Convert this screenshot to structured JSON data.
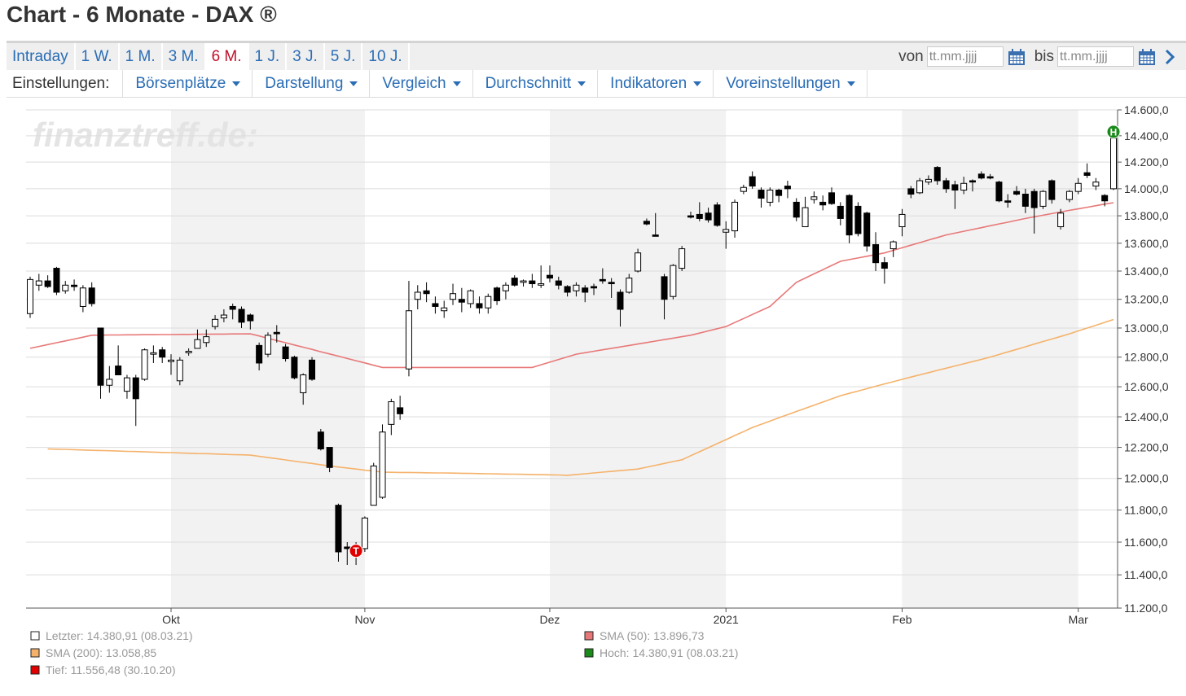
{
  "header": {
    "title": "Chart - 6 Monate - DAX ®"
  },
  "toolbar": {
    "tabs": [
      {
        "label": "Intraday"
      },
      {
        "label": "1 W."
      },
      {
        "label": "1 M."
      },
      {
        "label": "3 M."
      },
      {
        "label": "6 M.",
        "active": true
      },
      {
        "label": "1 J."
      },
      {
        "label": "3 J."
      },
      {
        "label": "5 J."
      },
      {
        "label": "10 J."
      }
    ],
    "from_label": "von",
    "to_label": "bis",
    "date_placeholder": "tt.mm.jjjj"
  },
  "settings": {
    "label": "Einstellungen:",
    "menus": [
      "Börsenplätze",
      "Darstellung",
      "Vergleich",
      "Durchschnitt",
      "Indikatoren",
      "Voreinstellungen"
    ]
  },
  "chart_data": {
    "type": "candlestick",
    "watermark": "finanztreff.de:",
    "categories": [
      null,
      null,
      null,
      null,
      null,
      null,
      null,
      null,
      null,
      null,
      null,
      null,
      null,
      null,
      null,
      null,
      null,
      null,
      null,
      null,
      null,
      null,
      null,
      null,
      null,
      null,
      null,
      null,
      null,
      null,
      null,
      null,
      null,
      null,
      null,
      null,
      null,
      null,
      null,
      null,
      null,
      null,
      null,
      null,
      null,
      null,
      null,
      null,
      null,
      null,
      null,
      null,
      null,
      null,
      null,
      null,
      null,
      null,
      null,
      null,
      null,
      null,
      null,
      null,
      null,
      null,
      null,
      null,
      null,
      null,
      null,
      null,
      null,
      null,
      null,
      null,
      null,
      null,
      null,
      null,
      null,
      null,
      null,
      null,
      null,
      null,
      null,
      null,
      null,
      null,
      null,
      null,
      null,
      null,
      null,
      null,
      null,
      null,
      null,
      null,
      null,
      null,
      null,
      null,
      null,
      null,
      null,
      null,
      null,
      null,
      null,
      null,
      null,
      null,
      null,
      null,
      null,
      null,
      null,
      null,
      null,
      null,
      null,
      null
    ],
    "open": [
      13100,
      13300,
      13330,
      13420,
      13260,
      13300,
      13150,
      13280,
      13000,
      12610,
      12740,
      12570,
      12660,
      12650,
      12820,
      12850,
      12770,
      12640,
      12830,
      12860,
      12900,
      13010,
      13070,
      13150,
      13130,
      13090,
      12880,
      12820,
      12970,
      12870,
      12800,
      12560,
      12780,
      12300,
      12200,
      11830,
      11570,
      11580,
      11560,
      11830,
      11880,
      12350,
      12460,
      12720,
      13200,
      13260,
      13170,
      13120,
      13200,
      13200,
      13170,
      13170,
      13140,
      13280,
      13260,
      13350,
      13320,
      13330,
      13300,
      13370,
      13330,
      13290,
      13260,
      13280,
      13290,
      13340,
      13320,
      13250,
      13250,
      13400,
      13760,
      13660,
      13360,
      13220,
      13420,
      13800,
      13810,
      13820,
      13880,
      13680,
      13690,
      13980,
      14090,
      13990,
      13900,
      13990,
      14020,
      13900,
      13720,
      13920,
      13900,
      13970,
      13870,
      13950,
      13870,
      13820,
      13590,
      13460,
      13560,
      13720,
      14000,
      13970,
      14050,
      14160,
      14060,
      14030,
      13990,
      14060,
      14110,
      14090,
      14050,
      13910,
      13980,
      13960,
      13980,
      13870,
      14060,
      13720,
      13920,
      13980,
      14120,
      14020,
      13950,
      14000
    ],
    "high": [
      13360,
      13380,
      13370,
      13430,
      13330,
      13340,
      13300,
      13320,
      13000,
      12740,
      12880,
      12680,
      12680,
      12860,
      12880,
      12870,
      12820,
      12800,
      12860,
      12990,
      12990,
      13090,
      13130,
      13170,
      13150,
      13100,
      12900,
      12970,
      13020,
      12890,
      12810,
      12690,
      12800,
      12320,
      12200,
      11840,
      11600,
      11600,
      11760,
      12100,
      12350,
      12520,
      12540,
      13330,
      13300,
      13320,
      13220,
      13190,
      13310,
      13280,
      13270,
      13220,
      13240,
      13290,
      13320,
      13370,
      13340,
      13380,
      13440,
      13440,
      13360,
      13300,
      13320,
      13300,
      13310,
      13420,
      13350,
      13270,
      13380,
      13560,
      13780,
      13820,
      13380,
      13450,
      13580,
      13830,
      13900,
      13860,
      13900,
      13760,
      13920,
      14030,
      14130,
      14010,
      14010,
      14000,
      14060,
      13930,
      13940,
      13980,
      13950,
      14010,
      13900,
      13960,
      13900,
      13830,
      13680,
      13500,
      13620,
      13850,
      14020,
      14080,
      14100,
      14170,
      14080,
      14060,
      14090,
      14070,
      14130,
      14110,
      14060,
      13960,
      14020,
      14000,
      14000,
      13990,
      14070,
      13850,
      13990,
      14080,
      14190,
      14080,
      13960,
      14380.91
    ],
    "low": [
      13070,
      13260,
      13280,
      13230,
      13240,
      13260,
      13110,
      13150,
      12520,
      12560,
      12690,
      12520,
      12340,
      12640,
      12760,
      12760,
      12680,
      12610,
      12810,
      12860,
      12870,
      12990,
      13040,
      13060,
      13000,
      12990,
      12710,
      12800,
      12900,
      12770,
      12650,
      12480,
      12640,
      12180,
      12040,
      11480,
      11460,
      11460,
      11540,
      11830,
      11870,
      12280,
      12380,
      12670,
      13130,
      13180,
      13100,
      13070,
      13160,
      13110,
      13140,
      13100,
      13100,
      13160,
      13200,
      13290,
      13290,
      13280,
      13280,
      13320,
      13270,
      13220,
      13220,
      13180,
      13230,
      13310,
      13210,
      13010,
      13240,
      13390,
      13730,
      13650,
      13060,
      13200,
      13400,
      13780,
      13760,
      13750,
      13720,
      13560,
      13640,
      13960,
      14000,
      13860,
      13870,
      13900,
      13930,
      13760,
      13720,
      13890,
      13840,
      13880,
      13730,
      13600,
      13650,
      13540,
      13400,
      13310,
      13500,
      13650,
      13930,
      13960,
      14030,
      14030,
      13970,
      13850,
      13960,
      13980,
      14070,
      14070,
      13900,
      13860,
      13950,
      13820,
      13670,
      13850,
      13890,
      13700,
      13900,
      13960,
      14080,
      13990,
      13870,
      13990
    ],
    "close": [
      13340,
      13330,
      13290,
      13250,
      13300,
      13290,
      13280,
      13170,
      12610,
      12650,
      12680,
      12660,
      12520,
      12850,
      12830,
      12800,
      12780,
      12780,
      12840,
      12920,
      12940,
      13060,
      13090,
      13130,
      13040,
      13050,
      12760,
      12950,
      12960,
      12790,
      12660,
      12680,
      12650,
      12190,
      12070,
      11540,
      11560,
      11556.48,
      11750,
      12080,
      12300,
      12500,
      12420,
      13120,
      13250,
      13240,
      13150,
      13140,
      13240,
      13180,
      13260,
      13140,
      13220,
      13190,
      13300,
      13300,
      13330,
      13310,
      13310,
      13350,
      13300,
      13250,
      13300,
      13250,
      13280,
      13330,
      13310,
      13130,
      13350,
      13530,
      13740,
      13650,
      13200,
      13440,
      13560,
      13790,
      13780,
      13770,
      13730,
      13700,
      13900,
      14010,
      14020,
      13930,
      13990,
      13950,
      14000,
      13790,
      13860,
      13940,
      13880,
      13890,
      13780,
      13660,
      13670,
      13580,
      13460,
      13420,
      13610,
      13810,
      13960,
      14060,
      14070,
      14060,
      14000,
      13990,
      14040,
      14050,
      14080,
      14080,
      13910,
      13900,
      13960,
      13870,
      13860,
      13980,
      13920,
      13820,
      13980,
      14040,
      14100,
      14050,
      13910,
      14380.91
    ],
    "up_color": "#ffffff",
    "down_color": "#000000",
    "series": [
      {
        "name": "SMA (50): 13.896,73",
        "color": "#e87878",
        "values": [
          12860,
          12873,
          12886,
          12899,
          12911,
          12924,
          12937,
          12950,
          12951,
          12952,
          12952,
          12953,
          12953,
          12954,
          12954,
          12955,
          12955,
          12956,
          12956,
          12957,
          12957,
          12958,
          12958,
          12959,
          12959,
          12960,
          12945,
          12929,
          12914,
          12899,
          12883,
          12868,
          12853,
          12837,
          12822,
          12807,
          12791,
          12776,
          12761,
          12745,
          12730,
          12730,
          12730,
          12730,
          12730,
          12730,
          12730,
          12730,
          12730,
          12730,
          12730,
          12730,
          12730,
          12730,
          12730,
          12730,
          12730,
          12730,
          12748,
          12766,
          12784,
          12802,
          12820,
          12830,
          12840,
          12850,
          12860,
          12870,
          12880,
          12890,
          12900,
          12910,
          12920,
          12930,
          12940,
          12950,
          12965,
          12980,
          12995,
          13010,
          13038,
          13066,
          13094,
          13122,
          13150,
          13207,
          13263,
          13320,
          13350,
          13380,
          13410,
          13440,
          13470,
          13482,
          13494,
          13506,
          13518,
          13530,
          13549,
          13567,
          13586,
          13604,
          13623,
          13641,
          13660,
          13673,
          13687,
          13700,
          13713,
          13727,
          13740,
          13753,
          13767,
          13780,
          13792,
          13804,
          13816,
          13828,
          13840,
          13851,
          13863,
          13874,
          13886,
          13896.73
        ]
      },
      {
        "name": "SMA (200): 13.058,85",
        "color": "#f5b26b",
        "values": [
          null,
          null,
          12190,
          12188,
          12187,
          12185,
          12183,
          12181,
          12180,
          12178,
          12176,
          12174,
          12173,
          12171,
          12169,
          12167,
          12166,
          12164,
          12162,
          12160,
          12159,
          12157,
          12155,
          12153,
          12152,
          12150,
          12142,
          12134,
          12127,
          12119,
          12111,
          12103,
          12096,
          12088,
          12080,
          12073,
          12067,
          12060,
          12053,
          12047,
          12040,
          12039,
          12038,
          12038,
          12037,
          12036,
          12035,
          12035,
          12034,
          12033,
          12032,
          12031,
          12030,
          12029,
          12028,
          12027,
          12026,
          12025,
          12024,
          12023,
          12022,
          12020,
          12025,
          12030,
          12035,
          12040,
          12045,
          12050,
          12055,
          12060,
          12072,
          12084,
          12096,
          12108,
          12120,
          12146,
          12172,
          12198,
          12224,
          12250,
          12277,
          12303,
          12330,
          12351,
          12372,
          12393,
          12414,
          12435,
          12456,
          12477,
          12498,
          12519,
          12540,
          12556,
          12571,
          12587,
          12603,
          12619,
          12634,
          12650,
          12665,
          12680,
          12695,
          12710,
          12725,
          12740,
          12755,
          12770,
          12785,
          12800,
          12818,
          12836,
          12853,
          12871,
          12889,
          12907,
          12924,
          12942,
          12960,
          12980,
          13000,
          13019,
          13039,
          13058.85
        ]
      }
    ],
    "legend": [
      {
        "label": "Letzter: 14.380,91 (08.03.21)",
        "color": "#ffffff"
      },
      {
        "label": "Tief: 11.556,48 (30.10.20)",
        "color": "#e00000"
      },
      {
        "label": "Hoch: 14.380,91 (08.03.21)",
        "color": "#1a8a1a"
      }
    ],
    "markers": [
      {
        "label": "H",
        "x": 123,
        "y": 14380.91,
        "color": "#1a8a1a"
      },
      {
        "label": "T",
        "x": 37,
        "y": 11556.48,
        "color": "#e00000"
      }
    ],
    "xticks": [
      {
        "value": 16,
        "label": "Okt"
      },
      {
        "value": 38,
        "label": "Nov"
      },
      {
        "value": 59,
        "label": "Dez"
      },
      {
        "value": 79,
        "label": "2021"
      },
      {
        "value": 99,
        "label": "Feb"
      },
      {
        "value": 119,
        "label": "Mar"
      }
    ],
    "ylim": [
      11200,
      14600
    ],
    "log_y": true,
    "grid": true,
    "yticks": [
      {
        "value": 11200,
        "label": "11.200,0"
      },
      {
        "value": 11400,
        "label": "11.400,0"
      },
      {
        "value": 11600,
        "label": "11.600,0"
      },
      {
        "value": 11800,
        "label": "11.800,0"
      },
      {
        "value": 12000,
        "label": "12.000,0"
      },
      {
        "value": 12200,
        "label": "12.200,0"
      },
      {
        "value": 12400,
        "label": "12.400,0"
      },
      {
        "value": 12600,
        "label": "12.600,0"
      },
      {
        "value": 12800,
        "label": "12.800,0"
      },
      {
        "value": 13000,
        "label": "13.000,0"
      },
      {
        "value": 13200,
        "label": "13.200,0"
      },
      {
        "value": 13400,
        "label": "13.400,0"
      },
      {
        "value": 13600,
        "label": "13.600,0"
      },
      {
        "value": 13800,
        "label": "13.800,0"
      },
      {
        "value": 14000,
        "label": "14.000,0"
      },
      {
        "value": 14200,
        "label": "14.200,0"
      },
      {
        "value": 14400,
        "label": "14.400,0"
      },
      {
        "value": 14600,
        "label": "14.600,0"
      }
    ]
  }
}
